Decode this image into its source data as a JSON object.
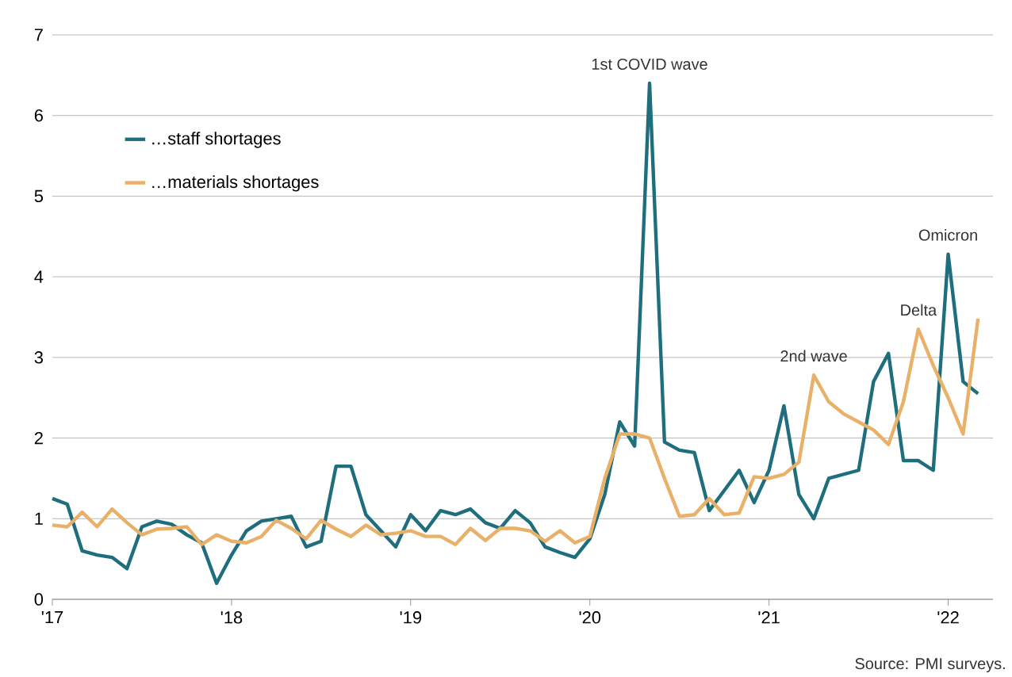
{
  "chart_data": {
    "type": "line",
    "x": [
      "2017-01",
      "2017-02",
      "2017-03",
      "2017-04",
      "2017-05",
      "2017-06",
      "2017-07",
      "2017-08",
      "2017-09",
      "2017-10",
      "2017-11",
      "2017-12",
      "2018-01",
      "2018-02",
      "2018-03",
      "2018-04",
      "2018-05",
      "2018-06",
      "2018-07",
      "2018-08",
      "2018-09",
      "2018-10",
      "2018-11",
      "2018-12",
      "2019-01",
      "2019-02",
      "2019-03",
      "2019-04",
      "2019-05",
      "2019-06",
      "2019-07",
      "2019-08",
      "2019-09",
      "2019-10",
      "2019-11",
      "2019-12",
      "2020-01",
      "2020-02",
      "2020-03",
      "2020-04",
      "2020-05",
      "2020-06",
      "2020-07",
      "2020-08",
      "2020-09",
      "2020-10",
      "2020-11",
      "2020-12",
      "2021-01",
      "2021-02",
      "2021-03",
      "2021-04",
      "2021-05",
      "2021-06",
      "2021-07",
      "2021-08",
      "2021-09",
      "2021-10",
      "2021-11",
      "2021-12",
      "2022-01",
      "2022-02",
      "2022-03"
    ],
    "series": [
      {
        "name": "…staff shortages",
        "color": "#1f6e7e",
        "values": [
          1.25,
          1.18,
          0.6,
          0.55,
          0.52,
          0.38,
          0.9,
          0.97,
          0.93,
          0.8,
          0.7,
          0.2,
          0.55,
          0.85,
          0.97,
          1.0,
          1.03,
          0.65,
          0.72,
          1.65,
          1.65,
          1.05,
          0.85,
          0.65,
          1.05,
          0.85,
          1.1,
          1.05,
          1.12,
          0.95,
          0.88,
          1.1,
          0.95,
          0.65,
          0.58,
          0.52,
          0.75,
          1.3,
          2.2,
          1.9,
          6.4,
          1.95,
          1.85,
          1.82,
          1.1,
          1.35,
          1.6,
          1.2,
          1.6,
          2.4,
          1.3,
          1.0,
          1.5,
          1.55,
          1.6,
          2.7,
          3.05,
          1.72,
          1.72,
          1.6,
          4.28,
          2.7,
          2.55
        ]
      },
      {
        "name": "…materials shortages",
        "color": "#e8b068",
        "values": [
          0.92,
          0.9,
          1.08,
          0.9,
          1.12,
          0.95,
          0.8,
          0.87,
          0.88,
          0.9,
          0.68,
          0.8,
          0.72,
          0.7,
          0.78,
          0.98,
          0.88,
          0.75,
          0.98,
          0.87,
          0.78,
          0.92,
          0.8,
          0.82,
          0.85,
          0.78,
          0.78,
          0.68,
          0.88,
          0.73,
          0.88,
          0.88,
          0.85,
          0.72,
          0.85,
          0.7,
          0.78,
          1.5,
          2.05,
          2.05,
          2.0,
          1.5,
          1.03,
          1.05,
          1.25,
          1.05,
          1.07,
          1.52,
          1.5,
          1.55,
          1.7,
          2.78,
          2.45,
          2.3,
          2.2,
          2.1,
          1.92,
          2.45,
          3.35,
          2.9,
          2.5,
          2.05,
          3.48
        ]
      }
    ],
    "xlim": [
      "2017-01",
      "2022-04"
    ],
    "xticks": [
      {
        "value": "2017-01",
        "label": "'17"
      },
      {
        "value": "2018-01",
        "label": "'18"
      },
      {
        "value": "2019-01",
        "label": "'19"
      },
      {
        "value": "2020-01",
        "label": "'20"
      },
      {
        "value": "2021-01",
        "label": "'21"
      },
      {
        "value": "2022-01",
        "label": "'22"
      }
    ],
    "ylim": [
      0,
      7
    ],
    "yticks": [
      0,
      1,
      2,
      3,
      4,
      5,
      6,
      7
    ],
    "grid": "y",
    "legend": "top left",
    "line_style": "solid",
    "annotations": [
      {
        "text": "1st COVID wave",
        "x": "2020-05",
        "y": 6.4
      },
      {
        "text": "2nd wave",
        "x": "2021-04",
        "y": 2.78
      },
      {
        "text": "Delta",
        "x": "2021-11",
        "y": 3.35
      },
      {
        "text": "Omicron",
        "x": "2022-01",
        "y": 4.28
      },
      "Source: PMI surveys."
    ]
  }
}
